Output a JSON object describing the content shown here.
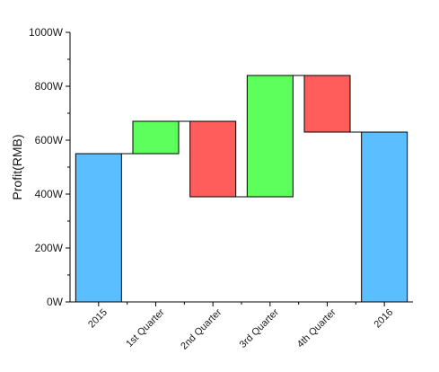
{
  "chart_data": {
    "type": "bar",
    "subtype": "waterfall",
    "title": "",
    "xlabel": "",
    "ylabel": "Profit(RMB)",
    "ylim": [
      0,
      1000
    ],
    "yticks": [
      0,
      200,
      400,
      600,
      800,
      1000
    ],
    "ytick_labels": [
      "0W",
      "200W",
      "400W",
      "600W",
      "800W",
      "1000W"
    ],
    "grid": false,
    "categories": [
      "2015",
      "1st Quarter",
      "2nd Quarter",
      "3rd Quarter",
      "4th Quarter",
      "2016"
    ],
    "bars": [
      {
        "label": "2015",
        "kind": "total",
        "start": 0,
        "end": 550
      },
      {
        "label": "1st Quarter",
        "kind": "increase",
        "start": 550,
        "end": 670
      },
      {
        "label": "2nd Quarter",
        "kind": "decrease",
        "start": 670,
        "end": 390
      },
      {
        "label": "3rd Quarter",
        "kind": "increase",
        "start": 390,
        "end": 840
      },
      {
        "label": "4th Quarter",
        "kind": "decrease",
        "start": 840,
        "end": 630
      },
      {
        "label": "2016",
        "kind": "total",
        "start": 0,
        "end": 630
      }
    ],
    "colors": {
      "total": "#5bbfff",
      "increase": "#5cff5c",
      "decrease": "#ff5c5c",
      "outline": "#000000",
      "connector": "#000000"
    }
  }
}
